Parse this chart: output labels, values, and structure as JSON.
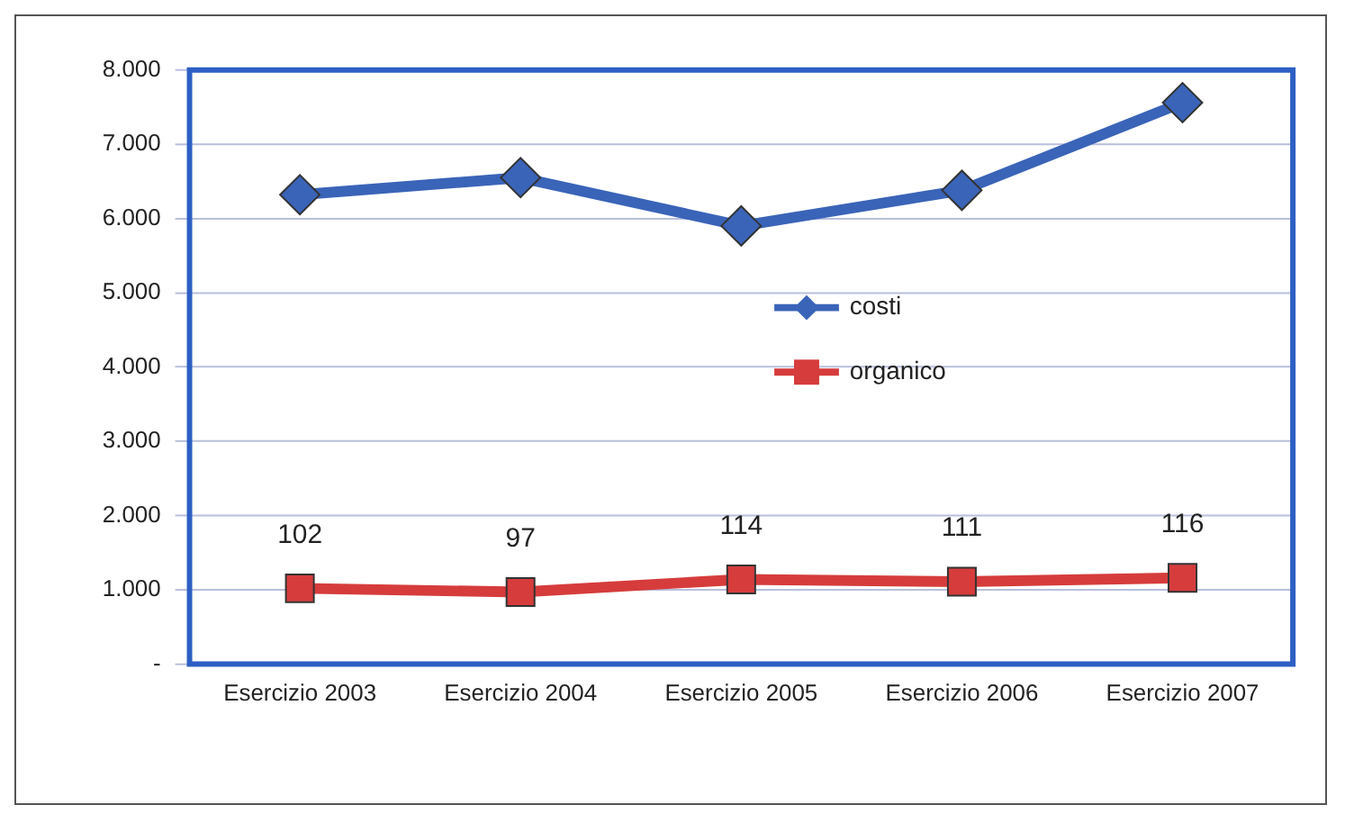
{
  "chart_data": {
    "type": "line",
    "categories": [
      "Esercizio 2003",
      "Esercizio 2004",
      "Esercizio 2005",
      "Esercizio 2006",
      "Esercizio 2007"
    ],
    "series": [
      {
        "name": "costi",
        "color": "#3a64b8",
        "marker": "diamond",
        "values": [
          6320,
          6550,
          5900,
          6380,
          7560
        ]
      },
      {
        "name": "organico",
        "color": "#d63c3c",
        "marker": "square",
        "values": [
          1020,
          970,
          1140,
          1110,
          1160
        ]
      }
    ],
    "annotations": [
      {
        "text": "102",
        "x": "Esercizio 2003",
        "y": 1020
      },
      {
        "text": "97",
        "x": "Esercizio 2004",
        "y": 970
      },
      {
        "text": "114",
        "x": "Esercizio 2005",
        "y": 1140
      },
      {
        "text": "111",
        "x": "Esercizio 2006",
        "y": 1110
      },
      {
        "text": "116",
        "x": "Esercizio 2007",
        "y": 1160
      }
    ],
    "ylim": [
      0,
      8000
    ],
    "yticks": [
      {
        "value": 0,
        "label": "-"
      },
      {
        "value": 1000,
        "label": "1.000"
      },
      {
        "value": 2000,
        "label": "2.000"
      },
      {
        "value": 3000,
        "label": "3.000"
      },
      {
        "value": 4000,
        "label": "4.000"
      },
      {
        "value": 5000,
        "label": "5.000"
      },
      {
        "value": 6000,
        "label": "6.000"
      },
      {
        "value": 7000,
        "label": "7.000"
      },
      {
        "value": 8000,
        "label": "8.000"
      }
    ],
    "grid": "y",
    "legend": "center",
    "line_style": "solid"
  }
}
